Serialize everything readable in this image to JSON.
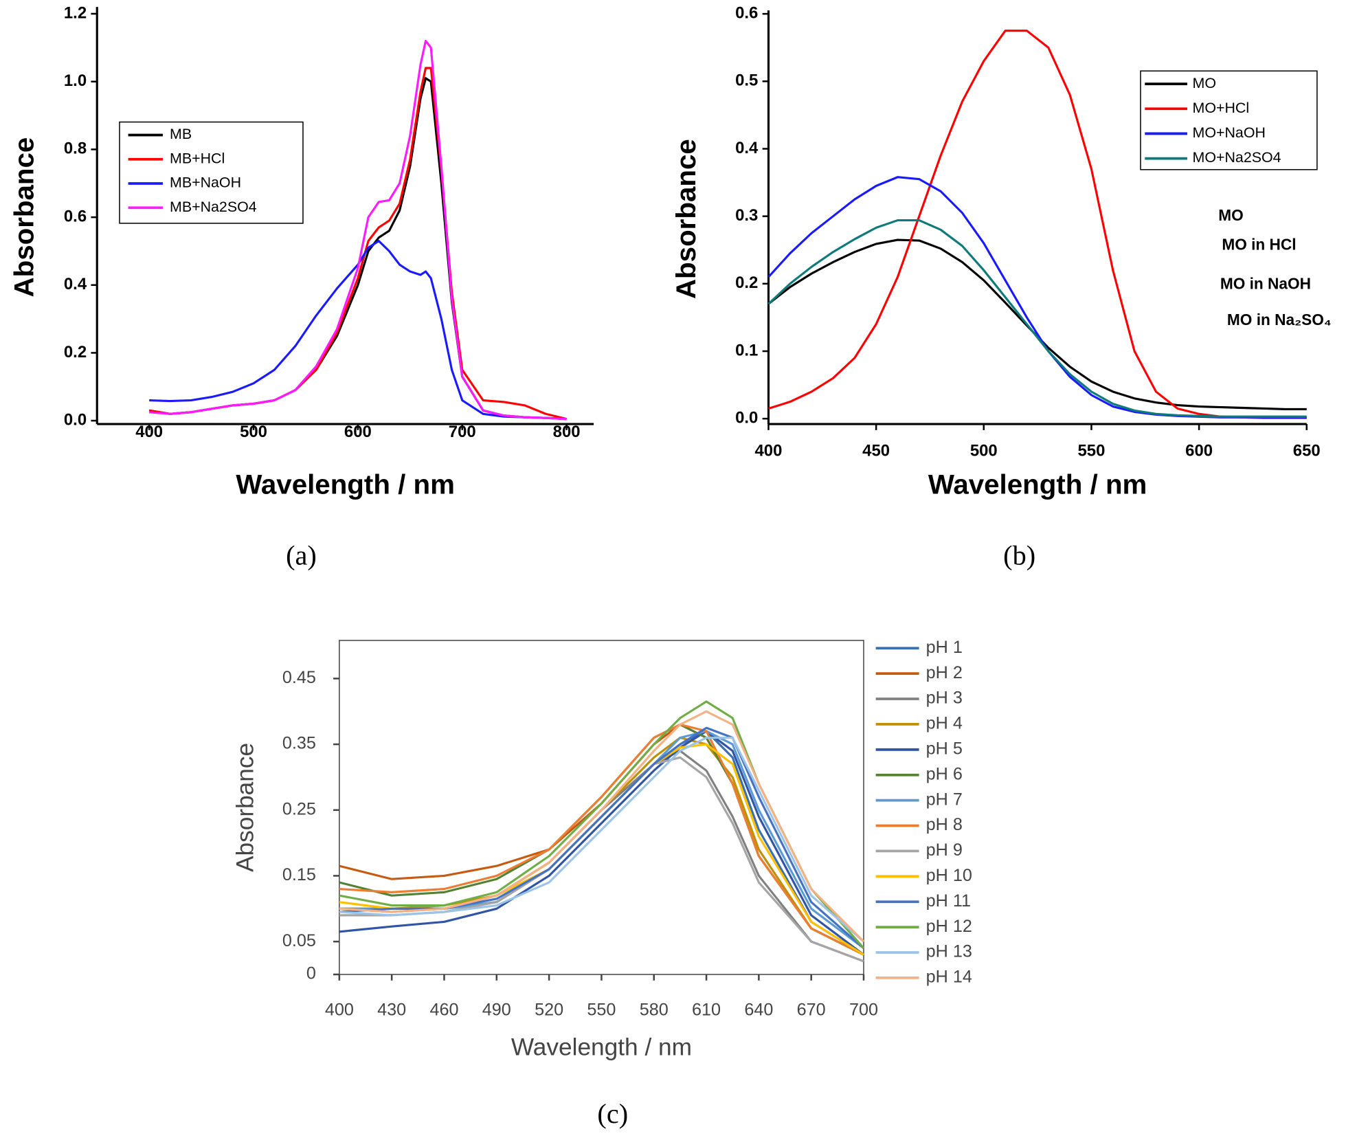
{
  "chart_data": [
    {
      "type": "line",
      "xlabel": "Wavelength / nm",
      "ylabel": "Absorbance",
      "caption": "(a)",
      "x": [
        400,
        420,
        440,
        460,
        480,
        500,
        520,
        540,
        560,
        580,
        600,
        610,
        620,
        630,
        640,
        650,
        660,
        665,
        670,
        680,
        690,
        700,
        720,
        740,
        760,
        780,
        800
      ],
      "xlim": [
        350,
        826
      ],
      "ylim": [
        -0.01,
        1.21
      ],
      "xticks": [
        400,
        500,
        600,
        700,
        800
      ],
      "yticks": [
        {
          "value": 0,
          "label": "0.0"
        },
        0.2,
        0.4,
        0.6,
        0.8,
        {
          "value": 1,
          "label": "1.0"
        },
        1.2
      ],
      "series": [
        {
          "name": "MB",
          "color": "#000000",
          "values": [
            0.03,
            0.02,
            0.025,
            0.035,
            0.045,
            0.05,
            0.06,
            0.09,
            0.15,
            0.25,
            0.4,
            0.5,
            0.54,
            0.56,
            0.62,
            0.75,
            0.95,
            1.01,
            1.0,
            0.7,
            0.35,
            0.13,
            0.03,
            0.015,
            0.01,
            0.008,
            0.005
          ]
        },
        {
          "name": "MB+HCl",
          "color": "#ff0000",
          "values": [
            0.03,
            0.02,
            0.025,
            0.035,
            0.045,
            0.05,
            0.06,
            0.09,
            0.15,
            0.26,
            0.42,
            0.53,
            0.57,
            0.59,
            0.64,
            0.77,
            0.97,
            1.04,
            1.04,
            0.74,
            0.38,
            0.15,
            0.06,
            0.055,
            0.045,
            0.02,
            0.005
          ]
        },
        {
          "name": "MB+NaOH",
          "color": "#1a1aff",
          "values": [
            0.06,
            0.058,
            0.06,
            0.07,
            0.085,
            0.11,
            0.15,
            0.22,
            0.31,
            0.39,
            0.46,
            0.51,
            0.53,
            0.5,
            0.46,
            0.44,
            0.43,
            0.44,
            0.42,
            0.3,
            0.15,
            0.06,
            0.02,
            0.012,
            0.01,
            0.008,
            0.005
          ]
        },
        {
          "name": "MB+Na2SO4",
          "color": "#ff1aff",
          "values": [
            0.025,
            0.02,
            0.025,
            0.035,
            0.045,
            0.05,
            0.06,
            0.09,
            0.16,
            0.27,
            0.45,
            0.6,
            0.645,
            0.65,
            0.7,
            0.84,
            1.05,
            1.12,
            1.1,
            0.75,
            0.36,
            0.13,
            0.03,
            0.015,
            0.01,
            0.008,
            0.005
          ]
        }
      ]
    },
    {
      "type": "line",
      "xlabel": "Wavelength / nm",
      "ylabel": "Absorbance",
      "caption": "(b)",
      "annotations": [
        "MO",
        "MO in HCl",
        "MO in NaOH",
        "MO in Na₂SO₄"
      ],
      "x": [
        400,
        410,
        420,
        430,
        440,
        450,
        460,
        470,
        480,
        490,
        500,
        510,
        520,
        530,
        540,
        550,
        560,
        570,
        580,
        590,
        600,
        610,
        620,
        630,
        640,
        650
      ],
      "xlim": [
        400,
        650
      ],
      "ylim": [
        -0.008,
        0.6
      ],
      "xticks": [
        400,
        450,
        500,
        550,
        600,
        650
      ],
      "yticks": [
        {
          "value": 0,
          "label": "0.0"
        },
        0.1,
        0.2,
        0.3,
        0.4,
        0.5,
        0.6
      ],
      "series": [
        {
          "name": "MO",
          "color": "#000000",
          "values": [
            0.17,
            0.195,
            0.215,
            0.232,
            0.247,
            0.259,
            0.265,
            0.264,
            0.252,
            0.232,
            0.205,
            0.172,
            0.138,
            0.105,
            0.077,
            0.055,
            0.04,
            0.03,
            0.024,
            0.02,
            0.018,
            0.017,
            0.016,
            0.015,
            0.014,
            0.014
          ]
        },
        {
          "name": "MO+HCl",
          "color": "#ff0000",
          "values": [
            0.015,
            0.025,
            0.04,
            0.06,
            0.09,
            0.14,
            0.21,
            0.3,
            0.39,
            0.47,
            0.53,
            0.575,
            0.575,
            0.55,
            0.48,
            0.37,
            0.22,
            0.1,
            0.04,
            0.015,
            0.007,
            0.003,
            0.002,
            0.001,
            0.001,
            0.001
          ]
        },
        {
          "name": "MO+NaOH",
          "color": "#1a1aff",
          "values": [
            0.21,
            0.245,
            0.275,
            0.3,
            0.325,
            0.345,
            0.358,
            0.355,
            0.337,
            0.305,
            0.26,
            0.205,
            0.15,
            0.1,
            0.062,
            0.035,
            0.018,
            0.01,
            0.006,
            0.004,
            0.003,
            0.002,
            0.002,
            0.002,
            0.002,
            0.002
          ]
        },
        {
          "name": "MO+Na2SO4",
          "color": "#0e7a7a",
          "values": [
            0.17,
            0.2,
            0.225,
            0.247,
            0.266,
            0.283,
            0.294,
            0.294,
            0.28,
            0.256,
            0.22,
            0.18,
            0.14,
            0.1,
            0.066,
            0.04,
            0.022,
            0.012,
            0.007,
            0.005,
            0.004,
            0.003,
            0.003,
            0.003,
            0.003,
            0.003
          ]
        }
      ]
    },
    {
      "type": "line",
      "xlabel": "Wavelength / nm",
      "ylabel": "Absorbance",
      "caption": "(c)",
      "x": [
        400,
        430,
        460,
        490,
        520,
        550,
        580,
        595,
        610,
        625,
        640,
        670,
        700
      ],
      "xlim": [
        400,
        700
      ],
      "ylim": [
        0,
        0.508
      ],
      "xticks": [
        400,
        430,
        460,
        490,
        520,
        550,
        580,
        610,
        640,
        670,
        700
      ],
      "yticks": [
        0,
        0.05,
        0.15,
        0.25,
        0.35,
        0.45
      ],
      "series": [
        {
          "name": "pH 1",
          "color": "#3a6fb0",
          "values": [
            0.1,
            0.1,
            0.1,
            0.11,
            0.16,
            0.24,
            0.32,
            0.35,
            0.37,
            0.33,
            0.22,
            0.08,
            0.03
          ]
        },
        {
          "name": "pH 2",
          "color": "#c55a11",
          "values": [
            0.165,
            0.145,
            0.15,
            0.165,
            0.19,
            0.26,
            0.35,
            0.38,
            0.36,
            0.29,
            0.18,
            0.07,
            0.03
          ]
        },
        {
          "name": "pH 3",
          "color": "#808080",
          "values": [
            0.1,
            0.095,
            0.1,
            0.12,
            0.17,
            0.25,
            0.32,
            0.34,
            0.31,
            0.24,
            0.15,
            0.05,
            0.02
          ]
        },
        {
          "name": "pH 4",
          "color": "#bf9000",
          "values": [
            0.1,
            0.1,
            0.105,
            0.12,
            0.17,
            0.25,
            0.33,
            0.36,
            0.35,
            0.3,
            0.19,
            0.07,
            0.03
          ]
        },
        {
          "name": "pH 5",
          "color": "#2f55a4",
          "values": [
            0.065,
            0.073,
            0.08,
            0.1,
            0.15,
            0.23,
            0.31,
            0.345,
            0.37,
            0.34,
            0.24,
            0.09,
            0.03
          ]
        },
        {
          "name": "pH 6",
          "color": "#548235",
          "values": [
            0.14,
            0.12,
            0.125,
            0.145,
            0.19,
            0.27,
            0.36,
            0.38,
            0.36,
            0.29,
            0.18,
            0.07,
            0.03
          ]
        },
        {
          "name": "pH 7",
          "color": "#5b9bd5",
          "values": [
            0.1,
            0.1,
            0.1,
            0.11,
            0.16,
            0.24,
            0.32,
            0.36,
            0.37,
            0.35,
            0.25,
            0.1,
            0.04
          ]
        },
        {
          "name": "pH 8",
          "color": "#ed7d31",
          "values": [
            0.13,
            0.125,
            0.13,
            0.15,
            0.19,
            0.27,
            0.36,
            0.38,
            0.37,
            0.29,
            0.18,
            0.07,
            0.03
          ]
        },
        {
          "name": "pH 9",
          "color": "#a5a5a5",
          "values": [
            0.09,
            0.09,
            0.095,
            0.11,
            0.16,
            0.24,
            0.32,
            0.33,
            0.3,
            0.23,
            0.14,
            0.05,
            0.02
          ]
        },
        {
          "name": "pH 10",
          "color": "#ffc000",
          "values": [
            0.11,
            0.1,
            0.1,
            0.12,
            0.16,
            0.24,
            0.32,
            0.345,
            0.35,
            0.32,
            0.21,
            0.08,
            0.03
          ]
        },
        {
          "name": "pH 11",
          "color": "#4472c4",
          "values": [
            0.095,
            0.1,
            0.1,
            0.115,
            0.16,
            0.24,
            0.32,
            0.35,
            0.375,
            0.36,
            0.27,
            0.11,
            0.04
          ]
        },
        {
          "name": "pH 12",
          "color": "#70ad47",
          "values": [
            0.12,
            0.105,
            0.105,
            0.125,
            0.18,
            0.26,
            0.35,
            0.39,
            0.415,
            0.39,
            0.29,
            0.13,
            0.04
          ]
        },
        {
          "name": "pH 13",
          "color": "#9dc3e6",
          "values": [
            0.095,
            0.09,
            0.095,
            0.105,
            0.14,
            0.22,
            0.3,
            0.34,
            0.36,
            0.36,
            0.28,
            0.12,
            0.05
          ]
        },
        {
          "name": "pH 14",
          "color": "#f4b183",
          "values": [
            0.1,
            0.095,
            0.1,
            0.12,
            0.17,
            0.25,
            0.34,
            0.38,
            0.4,
            0.38,
            0.29,
            0.13,
            0.05
          ]
        }
      ]
    }
  ]
}
